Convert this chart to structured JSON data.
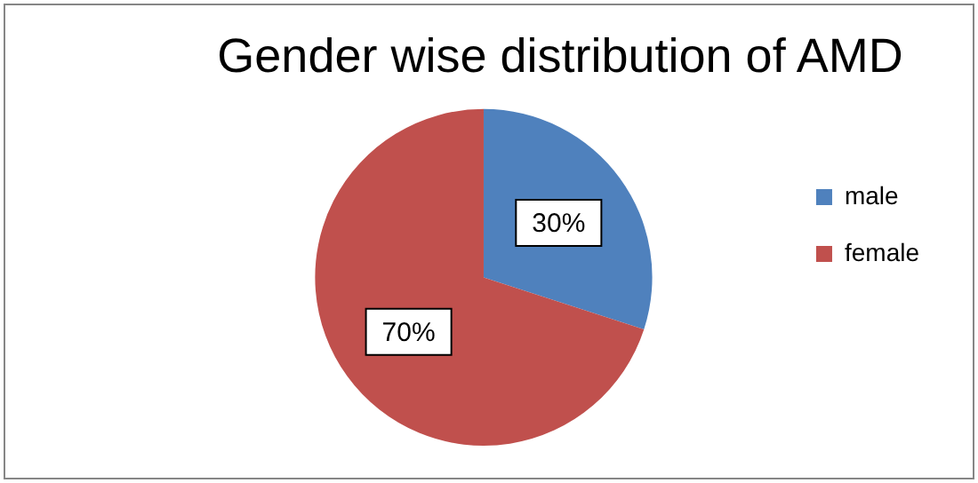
{
  "chart_data": {
    "type": "pie",
    "title": "Gender wise distribution of AMD",
    "categories": [
      "male",
      "female"
    ],
    "values": [
      30,
      70
    ],
    "colors": [
      "#4f81bd",
      "#c0504d"
    ],
    "value_labels": [
      "30%",
      "70%"
    ],
    "legend": "right"
  }
}
